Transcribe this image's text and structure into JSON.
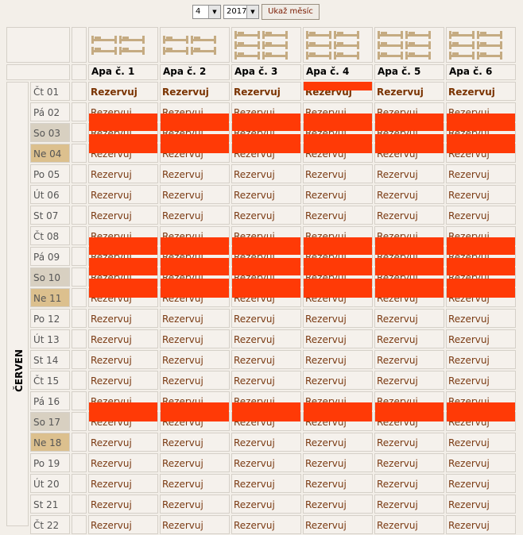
{
  "controls": {
    "month_value": "4",
    "year_value": "2017",
    "show_button": "Ukaž měsíc"
  },
  "month_label": "ČERVEN",
  "apartments": [
    {
      "name": "Apa č. 1",
      "beds": [
        2,
        2
      ]
    },
    {
      "name": "Apa č. 2",
      "beds": [
        2,
        2
      ]
    },
    {
      "name": "Apa č. 3",
      "beds": [
        2,
        2,
        2
      ]
    },
    {
      "name": "Apa č. 4",
      "beds": [
        2,
        2,
        2
      ]
    },
    {
      "name": "Apa č. 5",
      "beds": [
        2,
        2,
        2
      ]
    },
    {
      "name": "Apa č. 6",
      "beds": [
        2,
        2,
        2
      ]
    }
  ],
  "reserve_label": "Rezervuj",
  "days": [
    {
      "label": "Čt 01",
      "type": "weekday"
    },
    {
      "label": "Pá 02",
      "type": "weekday"
    },
    {
      "label": "So 03",
      "type": "sat"
    },
    {
      "label": "Ne 04",
      "type": "sun"
    },
    {
      "label": "Po 05",
      "type": "weekday"
    },
    {
      "label": "Út 06",
      "type": "weekday"
    },
    {
      "label": "St 07",
      "type": "weekday"
    },
    {
      "label": "Čt 08",
      "type": "weekday"
    },
    {
      "label": "Pá 09",
      "type": "weekday"
    },
    {
      "label": "So 10",
      "type": "sat"
    },
    {
      "label": "Ne 11",
      "type": "sun"
    },
    {
      "label": "Po 12",
      "type": "weekday"
    },
    {
      "label": "Út 13",
      "type": "weekday"
    },
    {
      "label": "St 14",
      "type": "weekday"
    },
    {
      "label": "Čt 15",
      "type": "weekday"
    },
    {
      "label": "Pá 16",
      "type": "weekday"
    },
    {
      "label": "So 17",
      "type": "sat"
    },
    {
      "label": "Ne 18",
      "type": "sun"
    },
    {
      "label": "Po 19",
      "type": "weekday"
    },
    {
      "label": "Út 20",
      "type": "weekday"
    },
    {
      "label": "St 21",
      "type": "weekday"
    },
    {
      "label": "Čt 22",
      "type": "weekday"
    }
  ],
  "bookings": [
    {
      "apartments": [
        0,
        1,
        2,
        3,
        4,
        5
      ],
      "from_day": 2,
      "to_day": 4
    },
    {
      "apartments": [
        0,
        1,
        2,
        3,
        4,
        5
      ],
      "from_day": 8,
      "to_day": 11
    },
    {
      "apartments": [
        0,
        1,
        2,
        3,
        4,
        5
      ],
      "from_day": 16,
      "to_day": 17
    }
  ],
  "partial_bookings": [
    {
      "apartment": 3,
      "day": 1
    }
  ],
  "colors": {
    "booked": "#ff3a06",
    "saturday": "#d8d0c1",
    "sunday": "#dcc08e",
    "reserve_link": "#7a3a12"
  }
}
